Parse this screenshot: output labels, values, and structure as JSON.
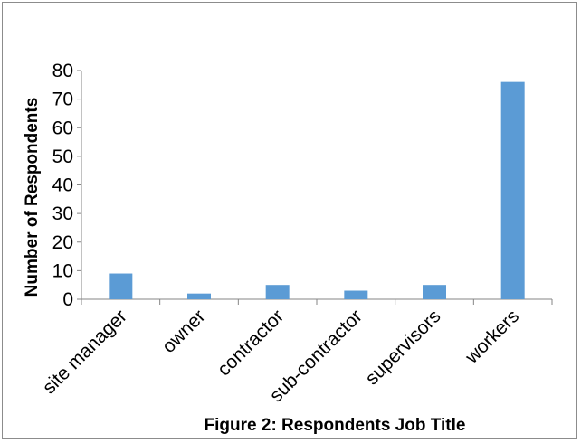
{
  "chart_data": {
    "type": "bar",
    "categories": [
      "site manager",
      "owner",
      "contractor",
      "sub-contractor",
      "supervisors",
      "workers"
    ],
    "values": [
      9,
      2,
      5,
      3,
      5,
      76
    ],
    "xlabel": "Figure 2: Respondents Job Title",
    "ylabel": "Number of Respondents",
    "ylim": [
      0,
      80
    ],
    "yticks": [
      0,
      10,
      20,
      30,
      40,
      50,
      60,
      70,
      80
    ],
    "grid": false,
    "legend": "none",
    "bar_color": "#5b9bd5"
  }
}
